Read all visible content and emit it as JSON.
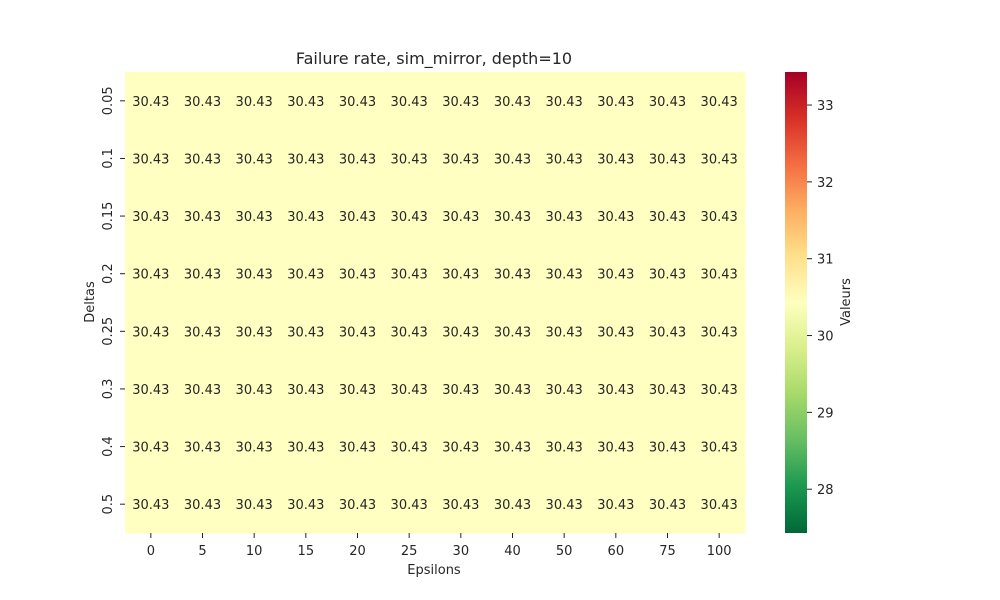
{
  "chart_data": {
    "type": "heatmap",
    "title": "Failure rate, sim_mirror, depth=10",
    "xlabel": "Epsilons",
    "ylabel": "Deltas",
    "x_categories": [
      "0",
      "5",
      "10",
      "15",
      "20",
      "25",
      "30",
      "40",
      "50",
      "60",
      "75",
      "100"
    ],
    "y_categories": [
      "0.05",
      "0.1",
      "0.15",
      "0.2",
      "0.25",
      "0.3",
      "0.4",
      "0.5"
    ],
    "values": [
      [
        30.43,
        30.43,
        30.43,
        30.43,
        30.43,
        30.43,
        30.43,
        30.43,
        30.43,
        30.43,
        30.43,
        30.43
      ],
      [
        30.43,
        30.43,
        30.43,
        30.43,
        30.43,
        30.43,
        30.43,
        30.43,
        30.43,
        30.43,
        30.43,
        30.43
      ],
      [
        30.43,
        30.43,
        30.43,
        30.43,
        30.43,
        30.43,
        30.43,
        30.43,
        30.43,
        30.43,
        30.43,
        30.43
      ],
      [
        30.43,
        30.43,
        30.43,
        30.43,
        30.43,
        30.43,
        30.43,
        30.43,
        30.43,
        30.43,
        30.43,
        30.43
      ],
      [
        30.43,
        30.43,
        30.43,
        30.43,
        30.43,
        30.43,
        30.43,
        30.43,
        30.43,
        30.43,
        30.43,
        30.43
      ],
      [
        30.43,
        30.43,
        30.43,
        30.43,
        30.43,
        30.43,
        30.43,
        30.43,
        30.43,
        30.43,
        30.43,
        30.43
      ],
      [
        30.43,
        30.43,
        30.43,
        30.43,
        30.43,
        30.43,
        30.43,
        30.43,
        30.43,
        30.43,
        30.43,
        30.43
      ],
      [
        30.43,
        30.43,
        30.43,
        30.43,
        30.43,
        30.43,
        30.43,
        30.43,
        30.43,
        30.43,
        30.43,
        30.43
      ]
    ],
    "cell_color": "#feffc0",
    "colorbar": {
      "label": "Valeurs",
      "range": [
        27.43,
        33.43
      ],
      "ticks": [
        28,
        29,
        30,
        31,
        32,
        33
      ],
      "colormap": "RdYlGn_r",
      "colors": [
        "#006837",
        "#1a9850",
        "#66bd63",
        "#a6d96a",
        "#d9ef8b",
        "#ffffbf",
        "#fee08b",
        "#fdae61",
        "#f46d43",
        "#d73027",
        "#a50026"
      ]
    },
    "grid": false
  }
}
